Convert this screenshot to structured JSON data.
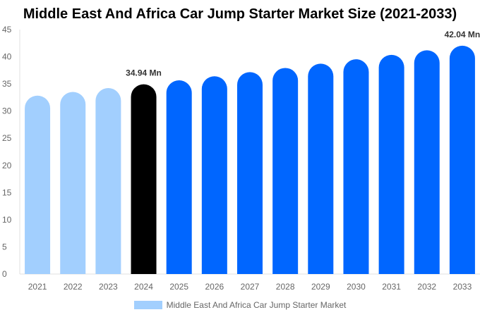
{
  "chart_data": {
    "type": "bar",
    "title": "Middle East And Africa Car Jump Starter Market Size (2021-2033)",
    "categories": [
      "2021",
      "2022",
      "2023",
      "2024",
      "2025",
      "2026",
      "2027",
      "2028",
      "2029",
      "2030",
      "2031",
      "2032",
      "2033"
    ],
    "series": [
      {
        "name": "Middle East And Africa Car Jump Starter Market",
        "values": [
          32.85,
          33.53,
          34.23,
          34.94,
          35.67,
          36.41,
          37.17,
          37.94,
          38.73,
          39.53,
          40.35,
          41.19,
          42.04
        ]
      }
    ],
    "data_labels": {
      "3": "34.94 Mn",
      "12": "42.04 Mn"
    },
    "ylim": [
      0,
      45
    ],
    "yticks": [
      0,
      5,
      10,
      15,
      20,
      25,
      30,
      35,
      40,
      45
    ],
    "colors": {
      "historic": "#a2cffe",
      "current": "#000000",
      "forecast": "#0066ff"
    },
    "legend_position": "bottom",
    "grid": false
  }
}
